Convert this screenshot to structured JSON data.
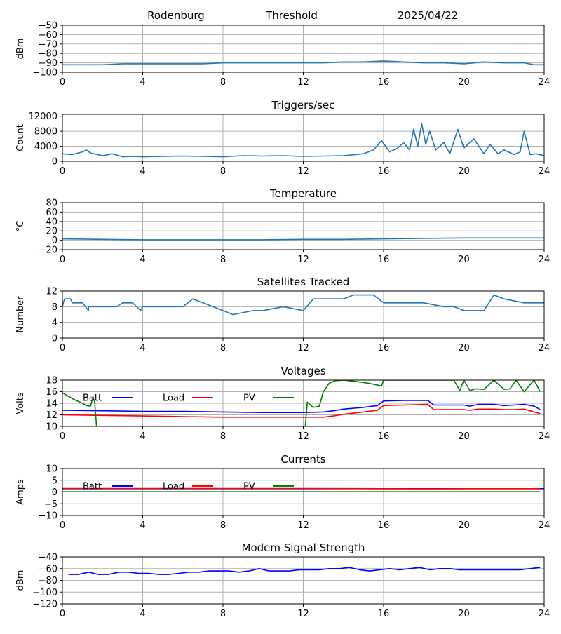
{
  "header": {
    "station": "Rodenburg",
    "mode": "Threshold",
    "date": "2025/04/22"
  },
  "x_ticks": [
    0,
    4,
    8,
    12,
    16,
    20,
    24
  ],
  "colors": {
    "default": "#1f77b4",
    "batt": "#0000ff",
    "load": "#ff0000",
    "pv": "#008000"
  },
  "chart_data": [
    {
      "id": "threshold",
      "type": "line",
      "title": "",
      "ylabel": "dBm",
      "xlim": [
        0,
        24
      ],
      "ylim": [
        -100,
        -50
      ],
      "yticks": [
        -100,
        -90,
        -80,
        -70,
        -60,
        -50
      ],
      "grid": true,
      "series": [
        {
          "color": "#1f77b4",
          "x": [
            0,
            1,
            2,
            3,
            4,
            5,
            6,
            7,
            8,
            9,
            10,
            11,
            12,
            13,
            14,
            15,
            16,
            17,
            18,
            19,
            20,
            21,
            22,
            23,
            23.5,
            24
          ],
          "y": [
            -92,
            -92,
            -92,
            -91,
            -91,
            -91,
            -91,
            -91,
            -90,
            -90,
            -90,
            -90,
            -90,
            -90,
            -89,
            -89,
            -88,
            -89,
            -90,
            -90,
            -91,
            -89,
            -90,
            -90,
            -92,
            -92
          ]
        }
      ]
    },
    {
      "id": "triggers",
      "type": "line",
      "title": "Triggers/sec",
      "ylabel": "Count",
      "xlim": [
        0,
        24
      ],
      "ylim": [
        0,
        12500
      ],
      "yticks": [
        0,
        4000,
        8000,
        12000
      ],
      "grid": true,
      "series": [
        {
          "color": "#1f77b4",
          "x": [
            0,
            0.5,
            1,
            1.2,
            1.4,
            2,
            2.5,
            3,
            3.5,
            4,
            5,
            6,
            7,
            8,
            9,
            10,
            11,
            12,
            13,
            14,
            15,
            15.5,
            15.9,
            16.3,
            16.7,
            17,
            17.3,
            17.5,
            17.7,
            17.9,
            18.1,
            18.3,
            18.6,
            19,
            19.3,
            19.7,
            20,
            20.5,
            21,
            21.3,
            21.7,
            22,
            22.5,
            22.8,
            23,
            23.3,
            23.6,
            24
          ],
          "y": [
            2000,
            1800,
            2500,
            3000,
            2200,
            1500,
            2000,
            1200,
            1300,
            1200,
            1300,
            1400,
            1300,
            1200,
            1500,
            1400,
            1500,
            1300,
            1400,
            1500,
            2000,
            3000,
            5500,
            2500,
            3500,
            5000,
            3000,
            8500,
            4000,
            10000,
            4500,
            8000,
            3000,
            5000,
            2000,
            8500,
            3500,
            6000,
            2000,
            4500,
            2000,
            3000,
            1800,
            2500,
            8000,
            1800,
            2000,
            1500
          ]
        }
      ]
    },
    {
      "id": "temperature",
      "type": "line",
      "title": "Temperature",
      "ylabel": "°C",
      "xlim": [
        0,
        24
      ],
      "ylim": [
        -20,
        80
      ],
      "yticks": [
        -20,
        0,
        20,
        40,
        60,
        80
      ],
      "grid": true,
      "series": [
        {
          "color": "#1f77b4",
          "x": [
            0,
            2,
            4,
            6,
            8,
            10,
            12,
            14,
            16,
            18,
            20,
            22,
            24
          ],
          "y": [
            3,
            2,
            1,
            1,
            1,
            1,
            2,
            2,
            3,
            4,
            5,
            5,
            5
          ]
        }
      ]
    },
    {
      "id": "satellites",
      "type": "line",
      "title": "Satellites Tracked",
      "ylabel": "Number",
      "xlim": [
        0,
        24
      ],
      "ylim": [
        0,
        12
      ],
      "yticks": [
        0,
        4,
        8,
        12
      ],
      "grid": true,
      "series": [
        {
          "color": "#1f77b4",
          "x": [
            0,
            0.1,
            0.4,
            0.5,
            0.7,
            1,
            1.3,
            1.3,
            2,
            2.7,
            3,
            3.5,
            3.9,
            4,
            4.5,
            5,
            6,
            6.5,
            7,
            7.5,
            8,
            8.5,
            9.5,
            10,
            11,
            12,
            12.5,
            13,
            14,
            14.5,
            15,
            15.5,
            16,
            16.5,
            17,
            17.5,
            18,
            19,
            19.5,
            20,
            21,
            21.5,
            22,
            23,
            24
          ],
          "y": [
            8,
            10,
            10,
            9,
            9,
            9,
            7,
            8,
            8,
            8,
            9,
            9,
            7,
            8,
            8,
            8,
            8,
            10,
            9,
            8,
            7,
            6,
            7,
            7,
            8,
            7,
            10,
            10,
            10,
            11,
            11,
            11,
            9,
            9,
            9,
            9,
            9,
            8,
            8,
            7,
            7,
            11,
            10,
            9,
            9
          ]
        }
      ]
    },
    {
      "id": "voltages",
      "type": "line",
      "title": "Voltages",
      "ylabel": "Volts",
      "xlim": [
        0,
        24
      ],
      "ylim": [
        10,
        18
      ],
      "yticks": [
        10,
        12,
        14,
        16,
        18
      ],
      "grid": true,
      "legend": [
        {
          "label": "Batt",
          "color": "#0000ff"
        },
        {
          "label": "Load",
          "color": "#ff0000"
        },
        {
          "label": "PV",
          "color": "#008000"
        }
      ],
      "series": [
        {
          "name": "Batt",
          "color": "#0000ff",
          "x": [
            0,
            2,
            4,
            6,
            8,
            10,
            12,
            13,
            13.5,
            14,
            15,
            15.7,
            16,
            17,
            18.2,
            18.5,
            19,
            20,
            20.3,
            20.7,
            21,
            21.5,
            22,
            22.5,
            23,
            23.5,
            23.8
          ],
          "y": [
            12.8,
            12.7,
            12.6,
            12.6,
            12.5,
            12.4,
            12.4,
            12.5,
            12.7,
            13.0,
            13.3,
            13.6,
            14.4,
            14.5,
            14.5,
            13.7,
            13.7,
            13.7,
            13.5,
            13.8,
            13.8,
            13.8,
            13.6,
            13.7,
            13.8,
            13.5,
            12.9
          ]
        },
        {
          "name": "Load",
          "color": "#ff0000",
          "x": [
            0,
            2,
            4,
            6,
            8,
            10,
            12,
            13,
            13.5,
            14,
            15,
            15.7,
            16,
            17,
            18.2,
            18.5,
            19,
            20,
            20.3,
            20.7,
            21,
            21.5,
            22,
            22.5,
            23,
            23.5,
            23.8
          ],
          "y": [
            12.0,
            11.9,
            11.8,
            11.7,
            11.6,
            11.6,
            11.6,
            11.6,
            11.8,
            12.1,
            12.5,
            12.8,
            13.6,
            13.7,
            13.8,
            12.9,
            12.9,
            12.9,
            12.8,
            13.0,
            13.0,
            13.0,
            12.9,
            12.9,
            13.0,
            12.5,
            12.2
          ]
        },
        {
          "name": "PV",
          "color": "#008000",
          "x": [
            0,
            0.3,
            0.6,
            1,
            1.2,
            1.4,
            1.5,
            1.6,
            1.7,
            12.1,
            12.2,
            12.5,
            12.8,
            13,
            13.3,
            13.6,
            14,
            14.5,
            15,
            15.5,
            15.9,
            16,
            16,
            19.5,
            19.8,
            20,
            20.3,
            20.6,
            21,
            21.5,
            22,
            22.3,
            22.6,
            23,
            23.5,
            23.8
          ],
          "y": [
            15.8,
            15.2,
            14.6,
            14.0,
            13.6,
            13.5,
            14.8,
            14.5,
            10.0,
            10.0,
            14.2,
            13.3,
            13.5,
            16.0,
            17.5,
            17.9,
            18.0,
            17.8,
            17.6,
            17.3,
            17.0,
            18.0,
            18.0,
            18.0,
            16.2,
            18.0,
            16.2,
            16.5,
            16.4,
            18.0,
            16.4,
            16.5,
            18.0,
            16.0,
            18.0,
            16.0
          ]
        }
      ]
    },
    {
      "id": "currents",
      "type": "line",
      "title": "Currents",
      "ylabel": "Amps",
      "xlim": [
        0,
        24
      ],
      "ylim": [
        -10,
        10
      ],
      "yticks": [
        -10,
        -5,
        0,
        5,
        10
      ],
      "grid": true,
      "legend": [
        {
          "label": "Batt",
          "color": "#0000ff"
        },
        {
          "label": "Load",
          "color": "#ff0000"
        },
        {
          "label": "PV",
          "color": "#008000"
        }
      ],
      "series": [
        {
          "name": "Batt",
          "color": "#0000ff",
          "x": [
            0,
            24
          ],
          "y": [
            1.4,
            1.4
          ]
        },
        {
          "name": "Load",
          "color": "#ff0000",
          "x": [
            0,
            4,
            8,
            12,
            16,
            18,
            20,
            23.8
          ],
          "y": [
            1.5,
            1.5,
            1.5,
            1.5,
            1.4,
            1.3,
            1.4,
            1.4
          ]
        },
        {
          "name": "PV",
          "color": "#008000",
          "x": [
            0,
            23.8
          ],
          "y": [
            0.1,
            0.1
          ]
        }
      ]
    },
    {
      "id": "modem",
      "type": "line",
      "title": "Modem Signal Strength",
      "ylabel": "dBm",
      "xlim": [
        0,
        24
      ],
      "ylim": [
        -120,
        -40
      ],
      "yticks": [
        -120,
        -100,
        -80,
        -60,
        -40
      ],
      "grid": true,
      "series": [
        {
          "color": "#0000ff",
          "x": [
            0.3,
            0.8,
            1.3,
            1.8,
            2.3,
            2.8,
            3.3,
            3.8,
            4.3,
            4.8,
            5.3,
            5.8,
            6.3,
            6.8,
            7.3,
            7.8,
            8.3,
            8.8,
            9.3,
            9.8,
            10.3,
            10.8,
            11.3,
            11.8,
            12.3,
            12.8,
            13.3,
            13.8,
            14.3,
            14.8,
            15.3,
            15.8,
            16.3,
            16.8,
            17.3,
            17.8,
            18.3,
            18.8,
            19.3,
            19.8,
            20.3,
            20.8,
            21.3,
            21.8,
            22.3,
            22.8,
            23.3,
            23.8
          ],
          "y": [
            -70,
            -70,
            -66,
            -70,
            -70,
            -66,
            -66,
            -68,
            -68,
            -70,
            -70,
            -68,
            -66,
            -66,
            -64,
            -64,
            -64,
            -66,
            -64,
            -60,
            -64,
            -64,
            -64,
            -62,
            -62,
            -62,
            -60,
            -60,
            -58,
            -62,
            -64,
            -62,
            -60,
            -62,
            -60,
            -58,
            -62,
            -60,
            -60,
            -62,
            -62,
            -62,
            -62,
            -62,
            -62,
            -62,
            -60,
            -58
          ]
        }
      ]
    }
  ]
}
